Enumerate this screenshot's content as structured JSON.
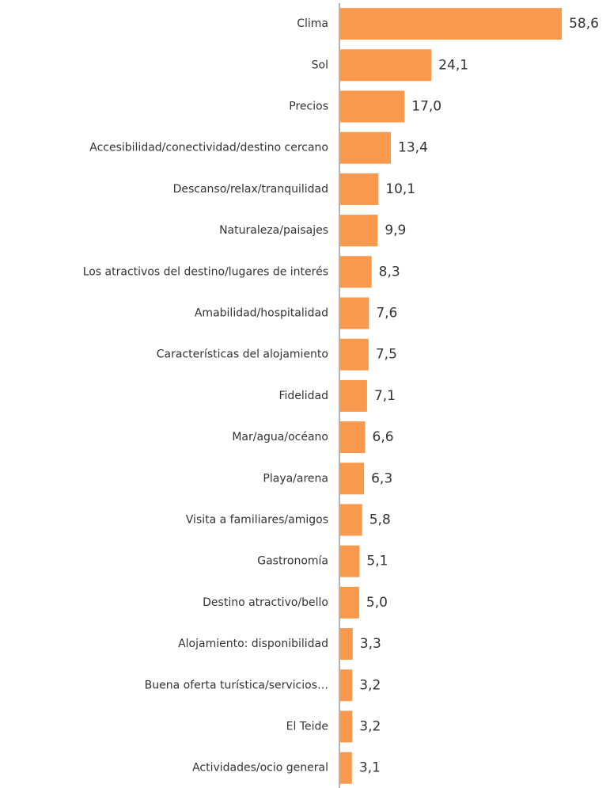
{
  "chart_data": {
    "type": "bar",
    "orientation": "horizontal",
    "color": "#f9994d",
    "categories": [
      "Clima",
      "Sol",
      "Precios",
      "Accesibilidad/conectividad/destino cercano",
      "Descanso/relax/tranquilidad",
      "Naturaleza/paisajes",
      "Los atractivos del destino/lugares de interés",
      "Amabilidad/hospitalidad",
      "Características del alojamiento",
      "Fidelidad",
      "Mar/agua/océano",
      "Playa/arena",
      "Visita a familiares/amigos",
      "Gastronomía",
      "Destino atractivo/bello",
      "Alojamiento: disponibilidad",
      "Buena oferta turística/servicios…",
      "El Teide",
      "Actividades/ocio general"
    ],
    "values": [
      58.6,
      24.1,
      17.0,
      13.4,
      10.1,
      9.9,
      8.3,
      7.6,
      7.5,
      7.1,
      6.6,
      6.3,
      5.8,
      5.1,
      5.0,
      3.3,
      3.2,
      3.2,
      3.1
    ],
    "value_labels": [
      "58,6",
      "24,1",
      "17,0",
      "13,4",
      "10,1",
      "9,9",
      "8,3",
      "7,6",
      "7,5",
      "7,1",
      "6,6",
      "6,3",
      "5,8",
      "5,1",
      "5,0",
      "3,3",
      "3,2",
      "3,2",
      "3,1"
    ]
  }
}
